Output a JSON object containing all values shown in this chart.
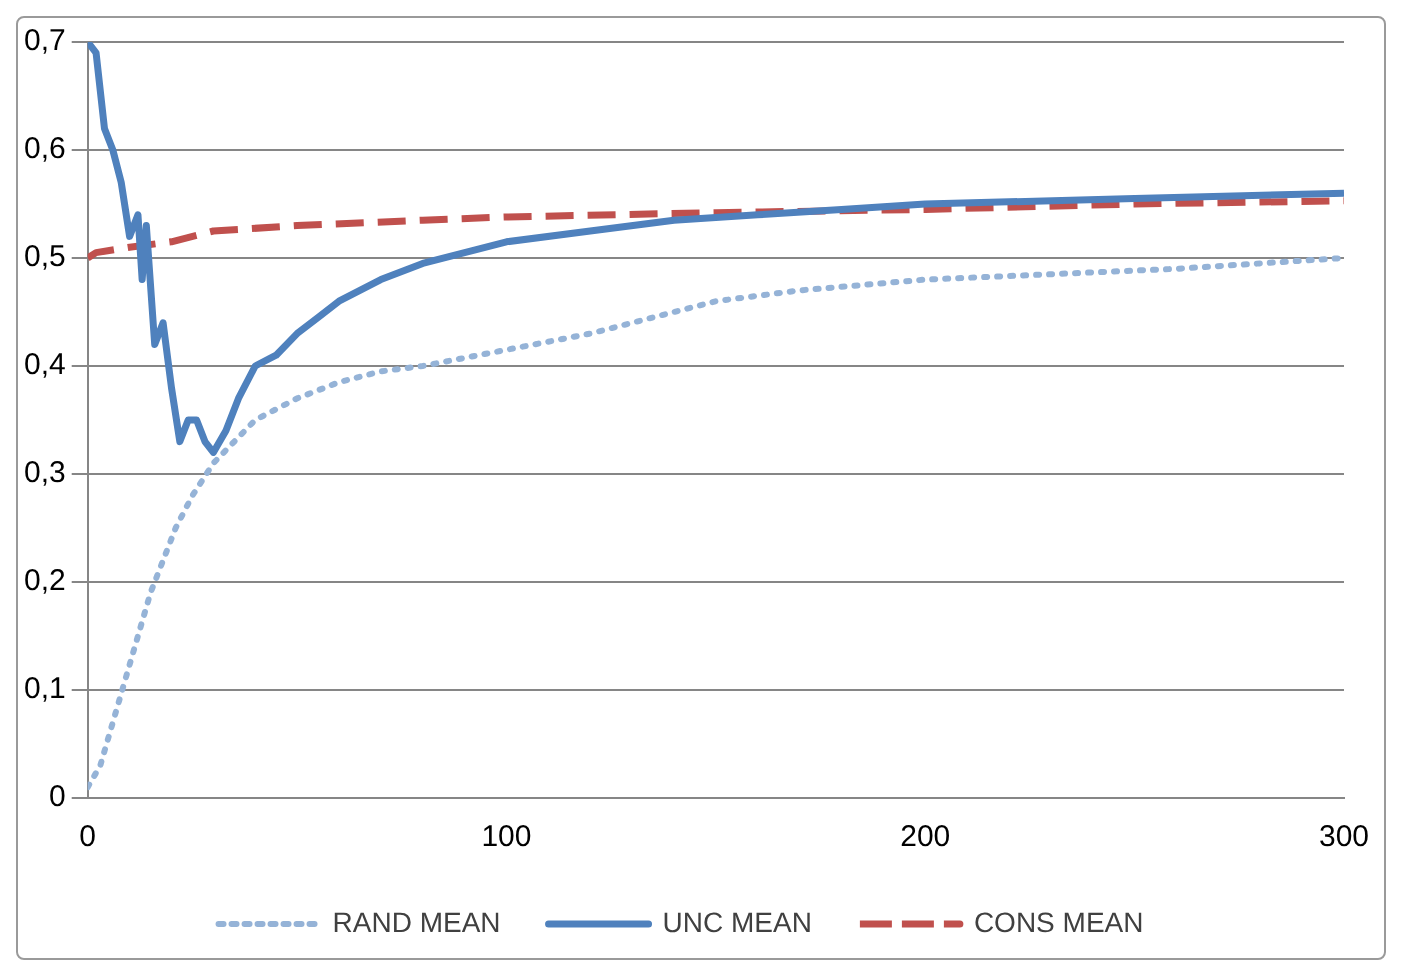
{
  "chart_data": {
    "type": "line",
    "xlim": [
      0,
      300
    ],
    "xticks": [
      0,
      100,
      200,
      300
    ],
    "ylim": [
      0,
      0.7
    ],
    "yticks": [
      0,
      {
        "value": 0.1,
        "label": "0,1"
      },
      {
        "value": 0.2,
        "label": "0,2"
      },
      {
        "value": 0.3,
        "label": "0,3"
      },
      {
        "value": 0.4,
        "label": "0,4"
      },
      {
        "value": 0.5,
        "label": "0,5"
      },
      {
        "value": 0.6,
        "label": "0,6"
      },
      {
        "value": 0.7,
        "label": "0,7"
      }
    ],
    "grid": "y",
    "legend": "bottom",
    "marker": "none",
    "series": [
      {
        "name": "RAND MEAN",
        "color": "#95b3d7",
        "line_style": "dotted",
        "x": [
          0,
          3,
          6,
          9,
          12,
          15,
          18,
          21,
          25,
          30,
          35,
          40,
          50,
          60,
          70,
          80,
          100,
          120,
          140,
          150,
          170,
          200,
          230,
          260,
          300
        ],
        "values": [
          0.01,
          0.03,
          0.07,
          0.11,
          0.15,
          0.19,
          0.22,
          0.25,
          0.28,
          0.31,
          0.33,
          0.35,
          0.37,
          0.385,
          0.395,
          0.4,
          0.415,
          0.43,
          0.45,
          0.46,
          0.47,
          0.48,
          0.485,
          0.49,
          0.5
        ]
      },
      {
        "name": "UNC MEAN",
        "color": "#4f81bd",
        "line_style": "solid",
        "x": [
          0,
          2,
          4,
          6,
          8,
          10,
          12,
          13,
          14,
          16,
          18,
          20,
          22,
          24,
          26,
          28,
          30,
          33,
          36,
          40,
          45,
          50,
          55,
          60,
          70,
          80,
          90,
          100,
          120,
          140,
          160,
          180,
          200,
          250,
          300
        ],
        "values": [
          0.7,
          0.69,
          0.62,
          0.6,
          0.57,
          0.52,
          0.54,
          0.48,
          0.53,
          0.42,
          0.44,
          0.38,
          0.33,
          0.35,
          0.35,
          0.33,
          0.32,
          0.34,
          0.37,
          0.4,
          0.41,
          0.43,
          0.445,
          0.46,
          0.48,
          0.495,
          0.505,
          0.515,
          0.525,
          0.535,
          0.54,
          0.545,
          0.55,
          0.555,
          0.56
        ]
      },
      {
        "name": "CONS MEAN",
        "color": "#c0504d",
        "line_style": "dashed",
        "x": [
          0,
          2,
          10,
          20,
          30,
          50,
          80,
          100,
          150,
          200,
          250,
          300
        ],
        "values": [
          0.5,
          0.505,
          0.51,
          0.515,
          0.525,
          0.53,
          0.535,
          0.538,
          0.542,
          0.545,
          0.55,
          0.553
        ]
      }
    ]
  }
}
